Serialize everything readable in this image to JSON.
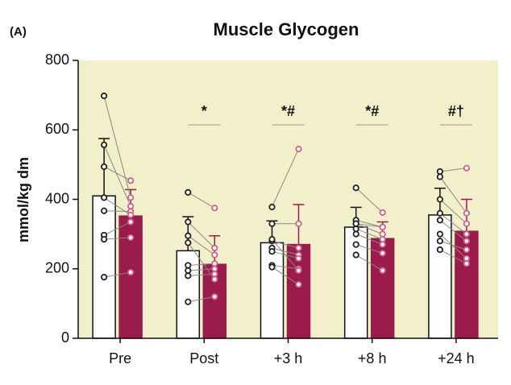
{
  "chart_data": {
    "type": "bar",
    "panel_label": "(A)",
    "title": "Muscle Glycogen",
    "y_label": "mmol/kg dm",
    "categories": [
      "Pre",
      "Post",
      "+3 h",
      "+8 h",
      "+24 h"
    ],
    "ylim": [
      0,
      800
    ],
    "yticks": [
      0,
      200,
      400,
      600,
      800
    ],
    "background": "#f2efcb",
    "annotations": [
      null,
      "*",
      "*#",
      "*#",
      "#†"
    ],
    "series": [
      {
        "color": "#ffffff",
        "point_color": "#222222",
        "values": [
          410,
          252,
          275,
          320,
          355
        ],
        "errors": [
          165,
          98,
          63,
          57,
          77
        ],
        "points": [
          [
            698,
            557,
            494,
            367,
            297,
            285,
            176,
            405
          ],
          [
            420,
            335,
            295,
            210,
            195,
            180,
            105,
            275
          ],
          [
            378,
            330,
            280,
            260,
            250,
            210,
            205,
            285
          ],
          [
            433,
            340,
            330,
            315,
            300,
            270,
            240,
            330
          ],
          [
            480,
            465,
            400,
            360,
            340,
            280,
            255,
            300
          ]
        ]
      },
      {
        "color": "#9b1b4a",
        "point_color": "#d0608a",
        "values": [
          352,
          213,
          270,
          287,
          308
        ],
        "errors": [
          76,
          82,
          115,
          48,
          92
        ],
        "points": [
          [
            405,
            380,
            454,
            365,
            335,
            290,
            190,
            355
          ],
          [
            375,
            260,
            240,
            215,
            200,
            185,
            120,
            170
          ],
          [
            545,
            330,
            260,
            240,
            230,
            200,
            155,
            195
          ],
          [
            362,
            320,
            300,
            285,
            270,
            245,
            195,
            320
          ],
          [
            490,
            360,
            330,
            300,
            280,
            255,
            215,
            230
          ]
        ]
      }
    ]
  }
}
